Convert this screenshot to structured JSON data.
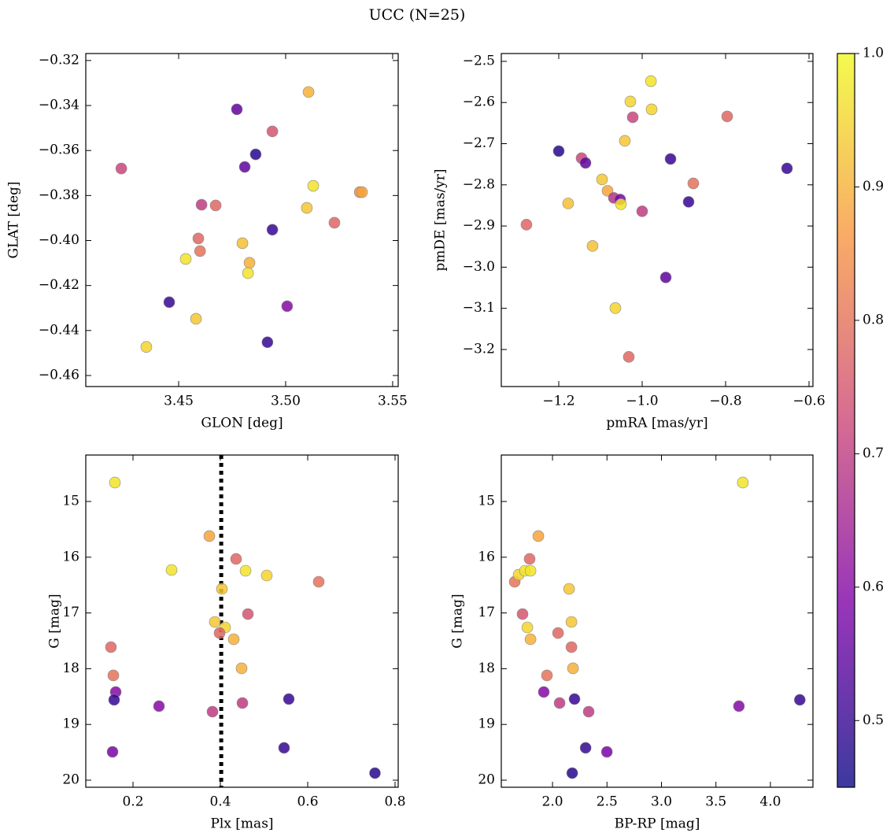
{
  "title": "UCC (N=25)",
  "chart_data": [
    {
      "type": "scatter",
      "xlabel": "GLON [deg]",
      "ylabel": "GLAT [deg]",
      "x": [
        3.4232,
        3.4772,
        3.4938,
        3.5107,
        3.486,
        3.4809,
        3.5129,
        3.5346,
        3.5357,
        3.5099,
        3.4607,
        3.4673,
        3.5228,
        3.4938,
        3.4592,
        3.4798,
        3.46,
        3.4533,
        3.4831,
        3.4824,
        3.4456,
        3.5007,
        3.4581,
        3.4349,
        3.4915
      ],
      "values": [
        -0.368,
        -0.3417,
        -0.3515,
        -0.334,
        -0.3617,
        -0.3673,
        -0.3757,
        -0.3785,
        -0.3785,
        -0.3855,
        -0.3841,
        -0.3844,
        -0.3921,
        -0.3952,
        -0.3991,
        -0.4012,
        -0.4047,
        -0.4082,
        -0.4099,
        -0.4145,
        -0.4274,
        -0.4292,
        -0.4348,
        -0.4473,
        -0.4452
      ],
      "color_values": [
        0.72,
        0.55,
        0.75,
        0.9,
        0.48,
        0.55,
        0.97,
        0.85,
        0.88,
        0.93,
        0.7,
        0.78,
        0.78,
        0.5,
        0.78,
        0.92,
        0.8,
        0.97,
        0.9,
        0.97,
        0.5,
        0.6,
        0.93,
        0.95,
        0.5
      ],
      "xlim": [
        3.4066,
        3.5526
      ],
      "ylim": [
        -0.4649,
        -0.3169
      ],
      "xticks": [
        {
          "value": 3.45,
          "label": "3.45"
        },
        {
          "value": 3.5,
          "label": "3.50"
        },
        {
          "value": 3.55,
          "label": "3.55"
        }
      ],
      "yticks": [
        {
          "value": -0.32,
          "label": "−0.32"
        },
        {
          "value": -0.34,
          "label": "−0.34"
        },
        {
          "value": -0.36,
          "label": "−0.36"
        },
        {
          "value": -0.38,
          "label": "−0.38"
        },
        {
          "value": -0.4,
          "label": "−0.40"
        },
        {
          "value": -0.42,
          "label": "−0.42"
        },
        {
          "value": -0.44,
          "label": "−0.44"
        },
        {
          "value": -0.46,
          "label": "−0.46"
        }
      ]
    },
    {
      "type": "scatter",
      "xlabel": "pmRA [mas/yr]",
      "ylabel": "pmDE [mas/yr]",
      "x": [
        -0.979,
        -1.0283,
        -0.9774,
        -1.0226,
        -0.7962,
        -1.0415,
        -1.2,
        -1.1453,
        -1.1358,
        -0.932,
        -0.6528,
        -1.0962,
        -0.8774,
        -1.083,
        -1.0679,
        -1.0528,
        -1.0509,
        -1.1774,
        -1.0,
        -0.8887,
        -1.2774,
        -1.1189,
        -0.9434,
        -1.0642,
        -1.0321
      ],
      "values": [
        -2.548,
        -2.5975,
        -2.6166,
        -2.6358,
        -2.6338,
        -2.6931,
        -2.718,
        -2.7352,
        -2.7467,
        -2.7371,
        -2.76,
        -2.7868,
        -2.7964,
        -2.8145,
        -2.8317,
        -2.8356,
        -2.847,
        -2.8451,
        -2.8642,
        -2.8413,
        -2.8967,
        -2.9484,
        -3.0249,
        -3.0994,
        -3.218
      ],
      "color_values": [
        0.97,
        0.95,
        0.95,
        0.72,
        0.78,
        0.93,
        0.48,
        0.72,
        0.55,
        0.5,
        0.5,
        0.93,
        0.8,
        0.88,
        0.68,
        0.58,
        0.97,
        0.92,
        0.7,
        0.5,
        0.78,
        0.92,
        0.55,
        0.95,
        0.78
      ],
      "xlim": [
        -1.3377,
        -0.5906
      ],
      "ylim": [
        -3.29,
        -2.481
      ],
      "xticks": [
        {
          "value": -1.2,
          "label": "−1.2"
        },
        {
          "value": -1.0,
          "label": "−1.0"
        },
        {
          "value": -0.8,
          "label": "−0.8"
        },
        {
          "value": -0.6,
          "label": "−0.6"
        }
      ],
      "yticks": [
        {
          "value": -2.5,
          "label": "−2.5"
        },
        {
          "value": -2.6,
          "label": "−2.6"
        },
        {
          "value": -2.7,
          "label": "−2.7"
        },
        {
          "value": -2.8,
          "label": "−2.8"
        },
        {
          "value": -2.9,
          "label": "−2.9"
        },
        {
          "value": -3.0,
          "label": "−3.0"
        },
        {
          "value": -3.1,
          "label": "−3.1"
        },
        {
          "value": -3.2,
          "label": "−3.2"
        }
      ]
    },
    {
      "type": "scatter",
      "xlabel": "Plx [mas]",
      "ylabel": "G [mag]",
      "x": [
        0.1586,
        0.3748,
        0.2883,
        0.436,
        0.4577,
        0.5063,
        0.6252,
        0.4036,
        0.4631,
        0.3874,
        0.4108,
        0.3982,
        0.4306,
        0.1495,
        0.4486,
        0.155,
        0.1604,
        0.1568,
        0.5567,
        0.2595,
        0.4505,
        0.382,
        0.5459,
        0.1532,
        0.754
      ],
      "values": [
        14.661,
        15.621,
        16.229,
        16.031,
        16.243,
        16.328,
        16.441,
        16.568,
        17.02,
        17.161,
        17.26,
        17.36,
        17.472,
        17.613,
        17.994,
        18.121,
        18.418,
        18.559,
        18.545,
        18.672,
        18.616,
        18.771,
        19.42,
        19.492,
        19.873
      ],
      "color_values": [
        0.97,
        0.88,
        0.97,
        0.78,
        0.97,
        0.95,
        0.8,
        0.93,
        0.75,
        0.93,
        0.95,
        0.78,
        0.9,
        0.78,
        0.9,
        0.8,
        0.6,
        0.5,
        0.5,
        0.6,
        0.7,
        0.7,
        0.5,
        0.58,
        0.48
      ],
      "xlim": [
        0.0919,
        0.8072
      ],
      "ylim": [
        20.127,
        14.167
      ],
      "vline_x": 0.402,
      "xticks": [
        0.2,
        0.4,
        0.6,
        0.8
      ],
      "yticks": [
        15,
        16,
        17,
        18,
        19,
        20
      ]
    },
    {
      "type": "scatter",
      "xlabel": "BP-RP [mag]",
      "ylabel": "G [mag]",
      "x": [
        3.747,
        1.87,
        1.79,
        1.653,
        1.689,
        1.747,
        1.798,
        2.152,
        1.725,
        2.174,
        1.769,
        2.051,
        1.798,
        2.174,
        2.188,
        1.949,
        1.92,
        2.202,
        4.27,
        3.711,
        2.065,
        2.332,
        2.304,
        2.499,
        2.181
      ],
      "values": [
        14.661,
        15.621,
        16.031,
        16.441,
        16.314,
        16.243,
        16.243,
        16.568,
        17.02,
        17.161,
        17.26,
        17.36,
        17.472,
        17.613,
        17.994,
        18.121,
        18.418,
        18.545,
        18.559,
        18.672,
        18.616,
        18.771,
        19.42,
        19.492,
        19.873
      ],
      "color_values": [
        0.97,
        0.88,
        0.78,
        0.8,
        0.95,
        0.97,
        0.97,
        0.93,
        0.75,
        0.93,
        0.95,
        0.78,
        0.9,
        0.78,
        0.9,
        0.8,
        0.6,
        0.5,
        0.5,
        0.6,
        0.7,
        0.7,
        0.5,
        0.58,
        0.48
      ],
      "xlim": [
        1.53,
        4.3905
      ],
      "ylim": [
        20.127,
        14.167
      ],
      "xticks": [
        {
          "value": 2.0,
          "label": "2.0"
        },
        {
          "value": 2.5,
          "label": "2.5"
        },
        {
          "value": 3.0,
          "label": "3.0"
        },
        {
          "value": 3.5,
          "label": "3.5"
        },
        {
          "value": 4.0,
          "label": "4.0"
        }
      ],
      "yticks": [
        15,
        16,
        17,
        18,
        19,
        20
      ]
    }
  ],
  "colorbar": {
    "colormap": "plasma",
    "clim": [
      0.45,
      1.0
    ],
    "cticks": [
      0.5,
      0.6,
      0.7,
      0.8,
      0.9,
      {
        "value": 1.0,
        "label": "1.0"
      }
    ]
  }
}
